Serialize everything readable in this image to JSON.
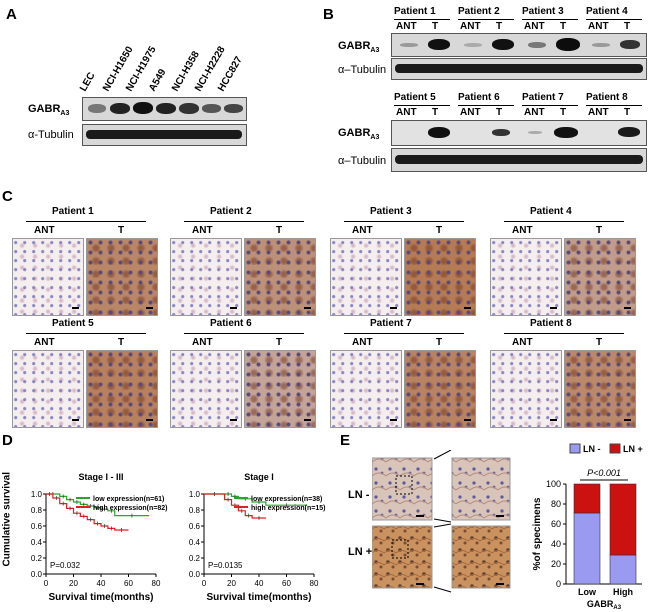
{
  "panels": {
    "A": "A",
    "B": "B",
    "C": "C",
    "D": "D",
    "E": "E"
  },
  "panelA": {
    "cell_lines": [
      "LEC",
      "NCI-H1650",
      "NCI-H1975",
      "A549",
      "NCI-H358",
      "NCI-H2228",
      "HCC827"
    ],
    "row1_label": "GABR",
    "row1_sub": "A3",
    "row2_label": "α-Tubulin"
  },
  "panelB": {
    "top_patients": [
      "Patient 1",
      "Patient 2",
      "Patient 3",
      "Patient 4"
    ],
    "bottom_patients": [
      "Patient 5",
      "Patient 6",
      "Patient 7",
      "Patient 8"
    ],
    "ant": "ANT",
    "t": "T",
    "row1_label": "GABR",
    "row1_sub": "A3",
    "row2_label": "α–Tubulin"
  },
  "panelC": {
    "patients": [
      "Patient 1",
      "Patient 2",
      "Patient 3",
      "Patient 4",
      "Patient 5",
      "Patient 6",
      "Patient 7",
      "Patient 8"
    ],
    "ant": "ANT",
    "t": "T"
  },
  "panelD": {
    "ylabel": "Cumulative survival",
    "xlabel": "Survival time(months)",
    "colors": {
      "low": "#2aa52a",
      "high": "#e02020"
    },
    "chart_data": [
      {
        "type": "line",
        "title": "Stage I - III",
        "xlabel": "Survival time(months)",
        "ylabel": "Cumulative survival",
        "xlim": [
          0,
          80
        ],
        "ylim": [
          0,
          1.0
        ],
        "xticks": [
          "0",
          "20",
          "40",
          "60",
          "80"
        ],
        "yticks": [
          "0.0",
          "0.2",
          "0.4",
          "0.6",
          "0.8",
          "1.0"
        ],
        "pvalue": "P=0.032",
        "series": [
          {
            "name": "low expression(n=61)",
            "x": [
              0,
              10,
              15,
              20,
              25,
              30,
              35,
              40,
              45,
              50,
              75
            ],
            "y": [
              1.0,
              0.97,
              0.93,
              0.9,
              0.87,
              0.85,
              0.83,
              0.81,
              0.79,
              0.73,
              0.73
            ]
          },
          {
            "name": "high expression(n=82)",
            "x": [
              0,
              5,
              10,
              15,
              20,
              25,
              30,
              35,
              40,
              45,
              50,
              60
            ],
            "y": [
              1.0,
              0.95,
              0.88,
              0.82,
              0.76,
              0.72,
              0.68,
              0.63,
              0.6,
              0.57,
              0.55,
              0.55
            ]
          }
        ]
      },
      {
        "type": "line",
        "title": "Stage I",
        "xlabel": "Survival time(months)",
        "ylabel": "",
        "xlim": [
          0,
          80
        ],
        "ylim": [
          0,
          1.0
        ],
        "xticks": [
          "0",
          "20",
          "40",
          "60",
          "80"
        ],
        "yticks": [
          "0.0",
          "0.2",
          "0.4",
          "0.6",
          "0.8",
          "1.0"
        ],
        "pvalue": "P=0.0135",
        "series": [
          {
            "name": "low expression(n=38)",
            "x": [
              0,
              15,
              20,
              25,
              35,
              45,
              75
            ],
            "y": [
              1.0,
              1.0,
              0.97,
              0.94,
              0.9,
              0.86,
              0.86
            ]
          },
          {
            "name": "high expression(n=15)",
            "x": [
              0,
              15,
              20,
              25,
              30,
              35,
              45
            ],
            "y": [
              1.0,
              0.93,
              0.86,
              0.79,
              0.73,
              0.7,
              0.7
            ]
          }
        ]
      }
    ]
  },
  "panelE": {
    "ln_minus": "LN -",
    "ln_plus": "LN +",
    "legend_minus": "LN -",
    "legend_plus": "LN +",
    "colors": {
      "ln_minus": "#9a9af0",
      "ln_plus": "#cc1111"
    },
    "xlabel_main": "GABR",
    "xlabel_sub": "A3",
    "chart_data": {
      "type": "bar",
      "categories": [
        "Low",
        "High"
      ],
      "ylabel": "%of specimens",
      "ylim": [
        0,
        100
      ],
      "yticks": [
        "0",
        "20",
        "40",
        "60",
        "80",
        "100"
      ],
      "pvalue": "P<0.001",
      "series": [
        {
          "name": "LN -",
          "values": [
            71,
            29
          ]
        },
        {
          "name": "LN +",
          "values": [
            29,
            71
          ]
        }
      ]
    }
  }
}
